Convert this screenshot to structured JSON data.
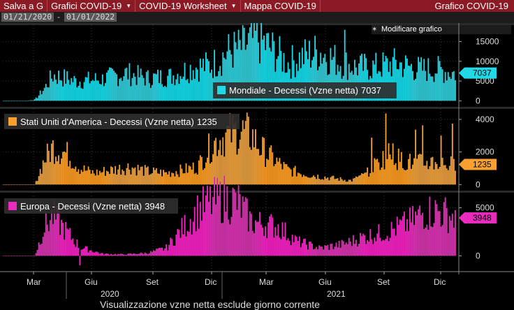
{
  "toolbar": {
    "tabs": [
      {
        "label": "Salva a G",
        "caret": false
      },
      {
        "label": "Grafici COVID-19",
        "caret": true
      },
      {
        "label": "COVID-19 Worksheet",
        "caret": true
      },
      {
        "label": "Mappa COVID-19",
        "caret": false
      }
    ],
    "right_label": "Grafico COVID-19"
  },
  "date_range": {
    "start": "01/21/2020",
    "end": "01/01/2022",
    "separator": "-"
  },
  "modify_button": "Modificare grafico",
  "footer_note": "Visualizzazione vzne netta esclude giorno corrente",
  "chart_data": {
    "type": "bar",
    "x_axis": {
      "months": [
        "Mar",
        "Giu",
        "Set",
        "Dic",
        "Mar",
        "Giu",
        "Set",
        "Dic"
      ],
      "years": [
        "2020",
        "2021"
      ]
    },
    "panels": [
      {
        "name": "Mondiale - Decessi (Vzne netta)",
        "last": "7037",
        "color": "#21d8e6",
        "ticks": [
          "15000",
          "10000",
          "5000",
          "0"
        ],
        "ylim": [
          -1000,
          19000
        ],
        "keypoints": [
          [
            0,
            0
          ],
          [
            0.05,
            0
          ],
          [
            0.07,
            300
          ],
          [
            0.09,
            3000
          ],
          [
            0.11,
            6500
          ],
          [
            0.16,
            5000
          ],
          [
            0.22,
            5500
          ],
          [
            0.27,
            7000
          ],
          [
            0.32,
            5700
          ],
          [
            0.37,
            6200
          ],
          [
            0.42,
            8500
          ],
          [
            0.46,
            9000
          ],
          [
            0.5,
            12500
          ],
          [
            0.53,
            13500
          ],
          [
            0.56,
            16000
          ],
          [
            0.6,
            12500
          ],
          [
            0.63,
            9500
          ],
          [
            0.67,
            11500
          ],
          [
            0.7,
            12500
          ],
          [
            0.74,
            10000
          ],
          [
            0.78,
            8500
          ],
          [
            0.82,
            8500
          ],
          [
            0.87,
            9500
          ],
          [
            0.92,
            8000
          ],
          [
            0.96,
            8000
          ],
          [
            1.0,
            7000
          ]
        ]
      },
      {
        "name": "Stati Uniti d'America - Decessi (Vzne netta)",
        "last": "1235",
        "color": "#f8a030",
        "ticks": [
          "4000",
          "2000",
          "0"
        ],
        "ylim": [
          -200,
          4600
        ],
        "keypoints": [
          [
            0,
            0
          ],
          [
            0.07,
            0
          ],
          [
            0.09,
            1500
          ],
          [
            0.11,
            2300
          ],
          [
            0.14,
            1900
          ],
          [
            0.17,
            1000
          ],
          [
            0.2,
            700
          ],
          [
            0.24,
            900
          ],
          [
            0.28,
            1100
          ],
          [
            0.32,
            800
          ],
          [
            0.36,
            700
          ],
          [
            0.4,
            900
          ],
          [
            0.43,
            1100
          ],
          [
            0.46,
            2400
          ],
          [
            0.49,
            3000
          ],
          [
            0.52,
            3300
          ],
          [
            0.55,
            3000
          ],
          [
            0.57,
            2200
          ],
          [
            0.6,
            1500
          ],
          [
            0.63,
            900
          ],
          [
            0.66,
            700
          ],
          [
            0.7,
            500
          ],
          [
            0.74,
            350
          ],
          [
            0.77,
            250
          ],
          [
            0.8,
            600
          ],
          [
            0.83,
            1300
          ],
          [
            0.85,
            1900
          ],
          [
            0.88,
            1500
          ],
          [
            0.91,
            1300
          ],
          [
            0.95,
            1400
          ],
          [
            1.0,
            1200
          ]
        ]
      },
      {
        "name": "Europa - Decessi (Vzne netta)",
        "last": "3948",
        "color": "#ea2bbd",
        "ticks": [
          "5000",
          "0"
        ],
        "ylim": [
          -1500,
          6500
        ],
        "keypoints": [
          [
            0,
            0
          ],
          [
            0.07,
            0
          ],
          [
            0.09,
            3000
          ],
          [
            0.11,
            4200
          ],
          [
            0.14,
            2500
          ],
          [
            0.17,
            900
          ],
          [
            0.22,
            200
          ],
          [
            0.27,
            150
          ],
          [
            0.32,
            300
          ],
          [
            0.36,
            800
          ],
          [
            0.39,
            2500
          ],
          [
            0.43,
            4700
          ],
          [
            0.46,
            5600
          ],
          [
            0.49,
            6000
          ],
          [
            0.52,
            5500
          ],
          [
            0.55,
            3500
          ],
          [
            0.58,
            3300
          ],
          [
            0.61,
            3000
          ],
          [
            0.65,
            1500
          ],
          [
            0.7,
            800
          ],
          [
            0.75,
            1200
          ],
          [
            0.8,
            2000
          ],
          [
            0.85,
            2500
          ],
          [
            0.9,
            3500
          ],
          [
            0.93,
            4500
          ],
          [
            0.96,
            4700
          ],
          [
            1.0,
            4000
          ]
        ]
      }
    ]
  }
}
